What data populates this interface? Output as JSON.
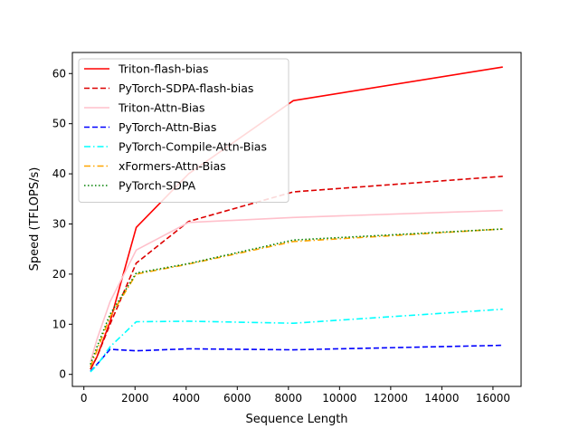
{
  "chart_data": {
    "type": "line",
    "title": "",
    "xlabel": "Sequence Length",
    "ylabel": "Speed (TFLOPS/s)",
    "xlim": [
      -450,
      17100
    ],
    "ylim": [
      -2.4,
      64.2
    ],
    "xticks": [
      0,
      2000,
      4000,
      6000,
      8000,
      10000,
      12000,
      14000,
      16000
    ],
    "yticks": [
      0,
      10,
      20,
      30,
      40,
      50,
      60
    ],
    "grid": false,
    "legend_position": "upper-left",
    "x": [
      256,
      512,
      1024,
      2048,
      4096,
      8192,
      16384
    ],
    "series": [
      {
        "name": "Triton-flash-bias",
        "color": "#ff0000",
        "dash": "solid",
        "values": [
          1.0,
          3.5,
          10.5,
          29.3,
          40.0,
          54.6,
          61.3
        ]
      },
      {
        "name": "PyTorch-SDPA-flash-bias",
        "color": "#dd0000",
        "dash": "dashed",
        "values": [
          1.0,
          3.5,
          10.0,
          22.2,
          30.5,
          36.4,
          39.5
        ]
      },
      {
        "name": "Triton-Attn-Bias",
        "color": "#ffc0cb",
        "dash": "solid",
        "values": [
          2.5,
          7.0,
          14.5,
          24.8,
          30.3,
          31.3,
          32.7
        ]
      },
      {
        "name": "PyTorch-Attn-Bias",
        "color": "#0000ff",
        "dash": "dashed",
        "values": [
          0.6,
          2.0,
          5.0,
          4.7,
          5.1,
          4.9,
          5.8
        ]
      },
      {
        "name": "PyTorch-Compile-Attn-Bias",
        "color": "#00ffff",
        "dash": "dashdot",
        "values": [
          0.5,
          1.8,
          5.5,
          10.5,
          10.6,
          10.2,
          13.0
        ]
      },
      {
        "name": "xFormers-Attn-Bias",
        "color": "#ffa500",
        "dash": "dashdot",
        "values": [
          1.5,
          4.8,
          11.5,
          20.0,
          22.0,
          26.5,
          29.0
        ]
      },
      {
        "name": "PyTorch-SDPA",
        "color": "#008000",
        "dash": "dotted",
        "values": [
          2.0,
          5.5,
          12.0,
          20.2,
          22.1,
          26.8,
          29.0
        ]
      }
    ]
  }
}
